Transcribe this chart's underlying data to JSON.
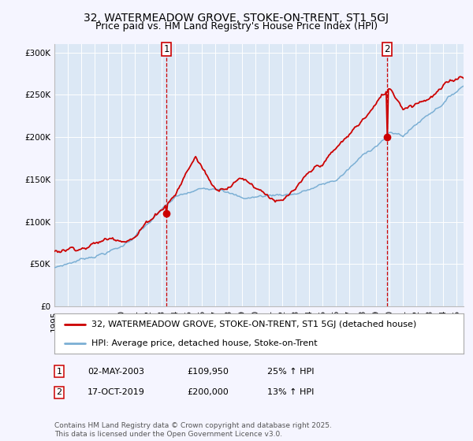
{
  "title": "32, WATERMEADOW GROVE, STOKE-ON-TRENT, ST1 5GJ",
  "subtitle": "Price paid vs. HM Land Registry's House Price Index (HPI)",
  "ylim": [
    0,
    310000
  ],
  "yticks": [
    0,
    50000,
    100000,
    150000,
    200000,
    250000,
    300000
  ],
  "ytick_labels": [
    "£0",
    "£50K",
    "£100K",
    "£150K",
    "£200K",
    "£250K",
    "£300K"
  ],
  "red_color": "#cc0000",
  "blue_color": "#7bafd4",
  "marker_color": "#cc0000",
  "vline_color": "#cc0000",
  "legend_label1": "32, WATERMEADOW GROVE, STOKE-ON-TRENT, ST1 5GJ (detached house)",
  "legend_label2": "HPI: Average price, detached house, Stoke-on-Trent",
  "table_row1": [
    "1",
    "02-MAY-2003",
    "£109,950",
    "25% ↑ HPI"
  ],
  "table_row2": [
    "2",
    "17-OCT-2019",
    "£200,000",
    "13% ↑ HPI"
  ],
  "footnote": "Contains HM Land Registry data © Crown copyright and database right 2025.\nThis data is licensed under the Open Government Licence v3.0.",
  "title_fontsize": 10,
  "subtitle_fontsize": 9,
  "axis_label_fontsize": 8,
  "tick_fontsize": 7.5,
  "background_color": "#f5f5ff",
  "plot_bg_color": "#dce8f5",
  "purchase1_year": 2003.33,
  "purchase1_price": 109950,
  "purchase2_year": 2019.79,
  "purchase2_price": 200000
}
